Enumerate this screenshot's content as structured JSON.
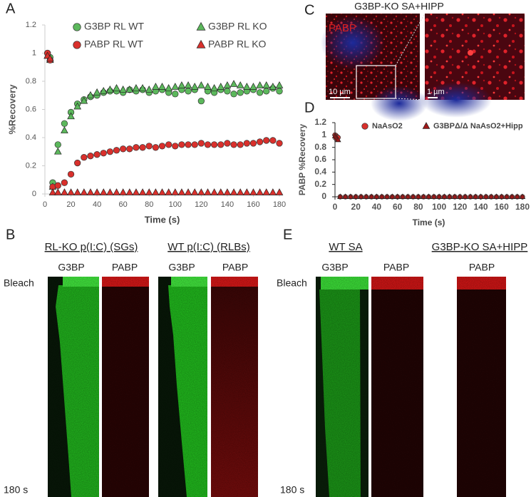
{
  "chart_data": [
    {
      "type": "scatter",
      "panel_label": "A",
      "xlabel": "Time (s)",
      "ylabel": "%Recovery",
      "x": [
        2,
        4,
        6,
        10,
        15,
        20,
        25,
        30,
        35,
        40,
        45,
        50,
        55,
        60,
        65,
        70,
        75,
        80,
        85,
        90,
        95,
        100,
        105,
        110,
        115,
        120,
        125,
        130,
        135,
        140,
        145,
        150,
        155,
        160,
        165,
        170,
        175,
        180
      ],
      "series": [
        {
          "name": "G3BP RL WT",
          "color": "#5cb85c",
          "marker": "circle",
          "values": [
            1,
            0.97,
            0.08,
            0.35,
            0.5,
            0.58,
            0.64,
            0.67,
            0.69,
            0.7,
            0.72,
            0.73,
            0.73,
            0.72,
            0.74,
            0.73,
            0.74,
            0.72,
            0.73,
            0.74,
            0.72,
            0.71,
            0.74,
            0.73,
            0.74,
            0.66,
            0.73,
            0.72,
            0.74,
            0.73,
            0.71,
            0.72,
            0.73,
            0.74,
            0.72,
            0.73,
            0.75,
            0.73
          ]
        },
        {
          "name": "G3BP RL KO",
          "color": "#5cb85c",
          "marker": "triangle",
          "values": [
            0.98,
            0.95,
            0.05,
            0.3,
            0.45,
            0.55,
            0.62,
            0.66,
            0.7,
            0.72,
            0.73,
            0.74,
            0.75,
            0.74,
            0.74,
            0.75,
            0.75,
            0.74,
            0.76,
            0.76,
            0.75,
            0.76,
            0.77,
            0.77,
            0.76,
            0.77,
            0.76,
            0.75,
            0.76,
            0.77,
            0.78,
            0.77,
            0.76,
            0.76,
            0.77,
            0.77,
            0.76,
            0.77
          ]
        },
        {
          "name": "PABP RL WT",
          "color": "#d9302c",
          "marker": "circle",
          "values": [
            1,
            0.95,
            0.05,
            0.06,
            0.08,
            0.14,
            0.22,
            0.26,
            0.27,
            0.28,
            0.29,
            0.3,
            0.31,
            0.32,
            0.32,
            0.33,
            0.33,
            0.34,
            0.33,
            0.34,
            0.35,
            0.34,
            0.35,
            0.35,
            0.35,
            0.36,
            0.35,
            0.35,
            0.35,
            0.36,
            0.35,
            0.35,
            0.36,
            0.36,
            0.37,
            0.38,
            0.38,
            0.36
          ]
        },
        {
          "name": "PABP RL KO",
          "color": "#d9302c",
          "marker": "triangle",
          "values": [
            0.98,
            0.96,
            0.01,
            0.01,
            0.01,
            0.01,
            0.01,
            0.01,
            0.01,
            0.01,
            0.01,
            0.01,
            0.01,
            0.01,
            0.01,
            0.01,
            0.01,
            0.01,
            0.01,
            0.01,
            0.01,
            0.01,
            0.01,
            0.01,
            0.01,
            0.01,
            0.01,
            0.01,
            0.01,
            0.01,
            0.01,
            0.01,
            0.01,
            0.01,
            0.01,
            0.01,
            0.01,
            0.01
          ]
        }
      ],
      "xlim": [
        0,
        180
      ],
      "xticks": [
        0,
        20,
        40,
        60,
        80,
        100,
        120,
        140,
        160,
        180
      ],
      "ylim": [
        0,
        1.2
      ],
      "yticks": [
        0,
        0.2,
        0.4,
        0.6,
        0.8,
        1,
        1.2
      ]
    },
    {
      "type": "scatter",
      "panel_label": "D",
      "xlabel": "Time (s)",
      "ylabel": "PABP %Recovery",
      "x": [
        0,
        1,
        2,
        3,
        5,
        10,
        15,
        20,
        25,
        30,
        35,
        40,
        45,
        50,
        55,
        60,
        65,
        70,
        75,
        80,
        85,
        90,
        95,
        100,
        105,
        110,
        115,
        120,
        125,
        130,
        135,
        140,
        145,
        150,
        155,
        160,
        165,
        170,
        175,
        180
      ],
      "series": [
        {
          "name": "NaAsO2",
          "color": "#d9302c",
          "marker": "circle",
          "values": [
            1,
            0.99,
            0.97,
            0.96,
            0,
            0,
            0,
            0,
            0,
            0,
            0,
            0,
            0,
            0,
            0,
            0,
            0,
            0,
            0,
            0,
            0,
            0,
            0,
            0,
            0,
            0,
            0,
            0,
            0,
            0,
            0,
            0,
            0,
            0,
            0,
            0,
            0,
            0,
            0,
            0
          ]
        },
        {
          "name": "G3BPΔ/Δ NaAsO2+Hipp",
          "color": "#a01818",
          "marker": "triangle",
          "values": [
            0.98,
            0.96,
            0.94,
            0.92,
            0,
            0,
            0,
            0,
            0,
            0,
            0,
            0,
            0,
            0,
            0,
            0,
            0,
            0,
            0,
            0,
            0,
            0,
            0,
            0,
            0,
            0,
            0,
            0,
            0,
            0,
            0,
            0,
            0,
            0,
            0,
            0,
            0,
            0,
            0,
            0
          ]
        }
      ],
      "xlim": [
        0,
        180
      ],
      "xticks": [
        0,
        20,
        40,
        60,
        80,
        100,
        120,
        140,
        160,
        180
      ],
      "ylim": [
        0,
        1.2
      ],
      "yticks": [
        0,
        0.2,
        0.4,
        0.6,
        0.8,
        1,
        1.2
      ]
    }
  ],
  "micrograph": {
    "panel_label": "C",
    "title": "G3BP-KO SA+HIPP",
    "stain": "PABP",
    "scale_bars": [
      "10 µm",
      "1 µm"
    ]
  },
  "kymographs_b": {
    "panel_label": "B",
    "groups": [
      {
        "title": "RL-KO p(I:C) (SGs)",
        "channels": [
          "G3BP",
          "PABP"
        ]
      },
      {
        "title": "WT p(I:C) (RLBs)",
        "channels": [
          "G3BP",
          "PABP"
        ]
      }
    ],
    "start": "Bleach",
    "end": "180 s"
  },
  "kymographs_e": {
    "panel_label": "E",
    "groups": [
      {
        "title": "WT SA",
        "channels": [
          "G3BP",
          "PABP"
        ]
      },
      {
        "title": "G3BP-KO SA+HIPP",
        "channels": [
          "PABP"
        ]
      }
    ],
    "start": "Bleach",
    "end": "180 s"
  }
}
